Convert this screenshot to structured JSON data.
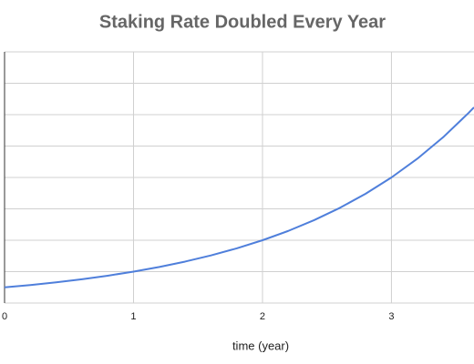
{
  "chart_data": {
    "type": "line",
    "title": "Staking Rate Doubled Every Year",
    "x_label": "time (year)",
    "x": [
      0,
      0.2,
      0.4,
      0.6,
      0.8,
      1,
      1.2,
      1.4,
      1.6,
      1.8,
      2,
      2.2,
      2.4,
      2.6,
      2.8,
      3,
      3.2,
      3.4,
      3.6,
      3.64
    ],
    "values": [
      0.5,
      0.574,
      0.66,
      0.758,
      0.871,
      1,
      1.149,
      1.32,
      1.516,
      1.741,
      2,
      2.297,
      2.639,
      3.031,
      3.482,
      4,
      4.595,
      5.278,
      6.063,
      6.233
    ],
    "color": "#4f7fdb",
    "xlim": [
      0,
      3.64
    ],
    "xticks": [
      0,
      1,
      2,
      3
    ],
    "ylim": [
      0,
      8
    ],
    "yticks": [
      0,
      1,
      2,
      3,
      4,
      5,
      6,
      7,
      8
    ],
    "ytick_labels": false,
    "grid": true
  }
}
